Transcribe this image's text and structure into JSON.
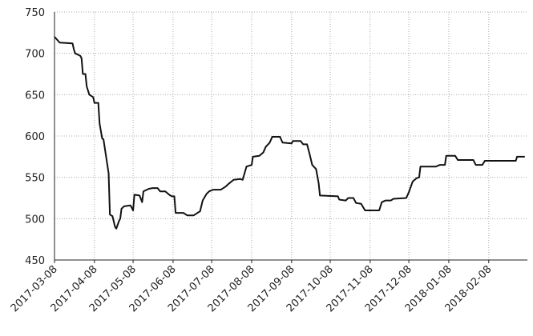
{
  "chart_data": {
    "type": "line",
    "x": [
      "2017-03-08",
      "2017-03-12",
      "2017-03-22",
      "2017-03-23",
      "2017-03-24",
      "2017-03-28",
      "2017-03-29",
      "2017-03-30",
      "2017-04-01",
      "2017-04-02",
      "2017-04-04",
      "2017-04-07",
      "2017-04-08",
      "2017-04-11",
      "2017-04-12",
      "2017-04-14",
      "2017-04-15",
      "2017-04-19",
      "2017-04-20",
      "2017-04-22",
      "2017-04-24",
      "2017-04-25",
      "2017-04-27",
      "2017-04-28",
      "2017-04-29",
      "2017-05-01",
      "2017-05-06",
      "2017-05-08",
      "2017-05-09",
      "2017-05-13",
      "2017-05-15",
      "2017-05-16",
      "2017-05-20",
      "2017-05-23",
      "2017-05-27",
      "2017-05-29",
      "2017-06-02",
      "2017-06-05",
      "2017-06-07",
      "2017-06-09",
      "2017-06-10",
      "2017-06-16",
      "2017-06-19",
      "2017-06-24",
      "2017-06-28",
      "2017-06-29",
      "2017-07-01",
      "2017-07-04",
      "2017-07-06",
      "2017-07-09",
      "2017-07-15",
      "2017-07-19",
      "2017-07-21",
      "2017-07-25",
      "2017-07-30",
      "2017-08-01",
      "2017-08-04",
      "2017-08-08",
      "2017-08-09",
      "2017-08-14",
      "2017-08-17",
      "2017-08-19",
      "2017-08-22",
      "2017-08-24",
      "2017-08-30",
      "2017-09-01",
      "2017-09-08",
      "2017-09-09",
      "2017-09-15",
      "2017-09-17",
      "2017-09-20",
      "2017-09-22",
      "2017-09-24",
      "2017-09-27",
      "2017-09-29",
      "2017-09-30",
      "2017-10-14",
      "2017-10-15",
      "2017-10-20",
      "2017-10-22",
      "2017-10-26",
      "2017-10-28",
      "2017-11-01",
      "2017-11-04",
      "2017-11-15",
      "2017-11-17",
      "2017-11-20",
      "2017-11-24",
      "2017-11-26",
      "2017-12-06",
      "2017-12-08",
      "2017-12-11",
      "2017-12-14",
      "2017-12-16",
      "2017-12-17",
      "2017-12-29",
      "2018-01-01",
      "2018-01-05",
      "2018-01-06",
      "2018-01-13",
      "2018-01-15",
      "2018-01-27",
      "2018-01-29",
      "2018-02-03",
      "2018-02-05",
      "2018-03-01",
      "2018-03-02",
      "2018-03-08"
    ],
    "values": [
      720,
      713,
      712,
      705,
      700,
      697,
      694,
      675,
      675,
      660,
      650,
      647,
      640,
      640,
      615,
      597,
      596,
      555,
      505,
      503,
      490,
      488,
      497,
      500,
      512,
      515,
      516,
      510,
      529,
      528,
      520,
      533,
      536,
      537,
      537,
      533,
      533,
      529,
      527,
      527,
      507,
      507,
      504,
      504,
      508,
      509,
      522,
      530,
      533,
      535,
      535,
      539,
      542,
      547,
      548,
      547,
      563,
      565,
      575,
      576,
      580,
      587,
      592,
      599,
      599,
      592,
      591,
      594,
      594,
      590,
      590,
      578,
      565,
      560,
      543,
      528,
      527,
      523,
      522,
      525,
      525,
      519,
      518,
      510,
      510,
      520,
      522,
      522,
      524,
      525,
      532,
      545,
      549,
      550,
      563,
      563,
      565,
      565,
      576,
      576,
      571,
      571,
      565,
      565,
      570,
      570,
      575,
      575
    ],
    "color": "#111111",
    "xlim": [
      "2017-03-08",
      "2018-03-10"
    ],
    "xticks": [
      "2017-03-08",
      "2017-04-08",
      "2017-05-08",
      "2017-06-08",
      "2017-07-08",
      "2017-08-08",
      "2017-09-08",
      "2017-10-08",
      "2017-11-08",
      "2017-12-08",
      "2018-01-08",
      "2018-02-08"
    ],
    "ylim": [
      450,
      750
    ],
    "yticks": [
      450,
      500,
      550,
      600,
      650,
      700,
      750
    ],
    "grid": true
  }
}
